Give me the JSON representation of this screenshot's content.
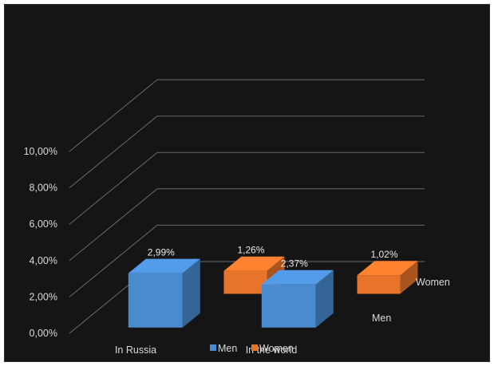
{
  "chart_data": {
    "type": "bar",
    "style": "3d-clustered-column",
    "categories": [
      "In Russia",
      "In the world"
    ],
    "series": [
      {
        "name": "Men",
        "values": [
          2.99,
          2.37
        ],
        "labels": [
          "2,99%",
          "2,37%"
        ],
        "color": "#4a8bd0"
      },
      {
        "name": "Women",
        "values": [
          1.26,
          1.02
        ],
        "labels": [
          "1,26%",
          "1,02%"
        ],
        "color": "#e8742b"
      }
    ],
    "series_axis_labels": [
      "Men",
      "Women"
    ],
    "y_ticks": [
      "0,00%",
      "2,00%",
      "4,00%",
      "6,00%",
      "8,00%",
      "10,00%"
    ],
    "y_tick_values": [
      0,
      2,
      4,
      6,
      8,
      10
    ],
    "ylim": [
      0,
      10
    ],
    "y_unit": "%",
    "grid": true,
    "legend": {
      "position": "bottom",
      "entries": [
        "Men",
        "Women"
      ]
    },
    "title": "",
    "xlabel": "",
    "ylabel": "",
    "background": "#151515",
    "grid_color": "#6a6a6a"
  }
}
